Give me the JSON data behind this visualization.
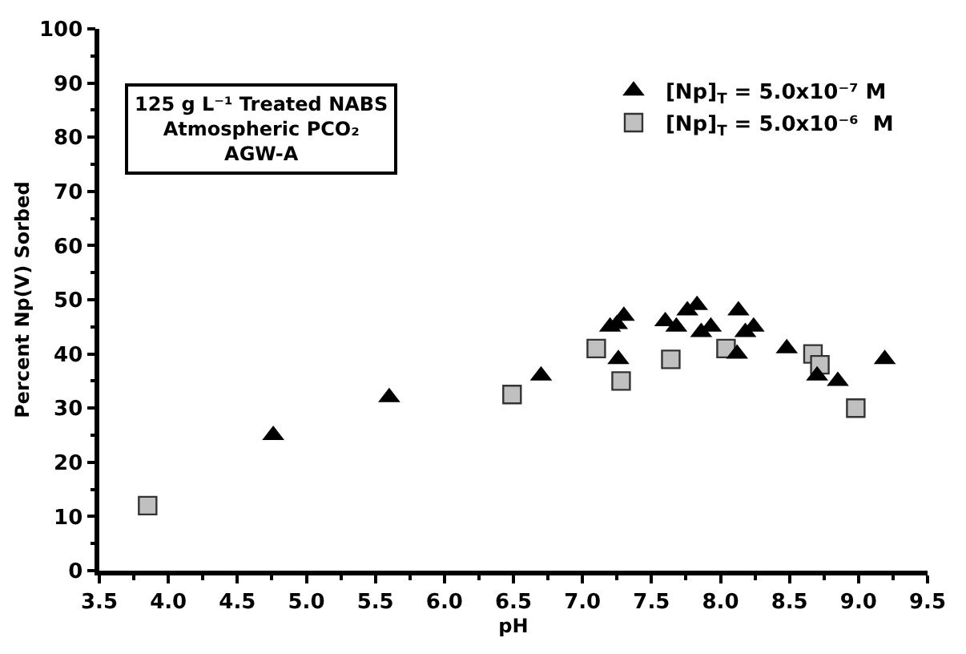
{
  "chart_data": {
    "type": "scatter",
    "xlabel": "pH",
    "ylabel": "Percent Np(V) Sorbed",
    "annotations": [
      "125 g L⁻¹ Treated NABS\nAtmospheric PCO₂\nAGW-A"
    ],
    "xlim": [
      3.5,
      9.5
    ],
    "xticks": [
      {
        "value": 3.5,
        "label": "3.5"
      },
      {
        "value": 4,
        "label": "4.0"
      },
      {
        "value": 4.5,
        "label": "4.5"
      },
      {
        "value": 5,
        "label": "5.0"
      },
      {
        "value": 5.5,
        "label": "5.5"
      },
      {
        "value": 6,
        "label": "6.0"
      },
      {
        "value": 6.5,
        "label": "6.5"
      },
      {
        "value": 7,
        "label": "7.0"
      },
      {
        "value": 7.5,
        "label": "7.5"
      },
      {
        "value": 8,
        "label": "8.0"
      },
      {
        "value": 8.5,
        "label": "8.5"
      },
      {
        "value": 9,
        "label": "9.0"
      },
      {
        "value": 9.5,
        "label": "9.5"
      }
    ],
    "ylim": [
      0,
      100
    ],
    "yticks": [
      0,
      10,
      20,
      30,
      40,
      50,
      60,
      70,
      80,
      90,
      100
    ],
    "legend": "top right",
    "series": [
      {
        "name": "[Np]$_{T}$ = 5.0x10⁻⁷ M",
        "color": "#000000",
        "marker": "triangle",
        "x": [
          4.76,
          5.6,
          6.7,
          7.2,
          7.25,
          7.3,
          7.26,
          7.6,
          7.68,
          7.76,
          7.83,
          7.86,
          7.93,
          8.13,
          8.12,
          8.18,
          8.24,
          8.48,
          8.7,
          8.85,
          9.19
        ],
        "values": [
          25,
          32,
          36,
          45,
          45.5,
          47,
          39,
          46,
          45,
          48,
          49,
          44,
          45,
          48,
          40,
          44,
          45,
          41,
          36,
          35,
          39
        ]
      },
      {
        "name": "[Np]$_{T}$ = 5.0x10⁻⁶  M",
        "color": "#c0c0c0",
        "marker": "square",
        "x": [
          3.85,
          6.49,
          7.1,
          7.28,
          7.64,
          7.68,
          8.04,
          8.67,
          8.72,
          8.98
        ],
        "values": [
          12,
          32.5,
          41,
          35,
          39,
          null,
          41,
          40,
          38,
          30
        ]
      }
    ]
  }
}
